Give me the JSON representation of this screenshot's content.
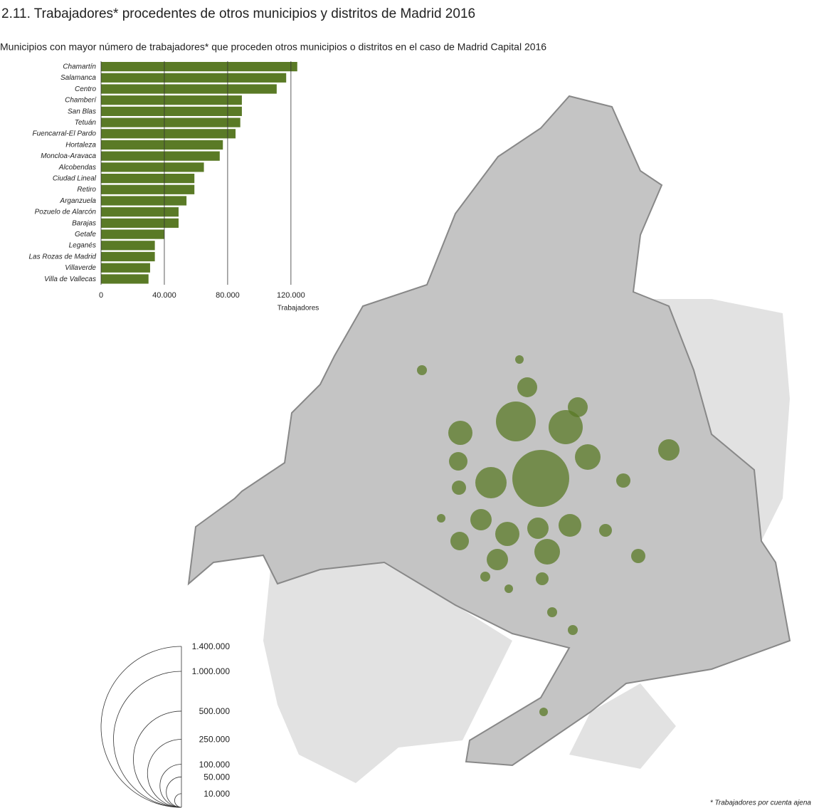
{
  "title": "2.11. Trabajadores* procedentes de otros municipios y distritos de Madrid 2016",
  "footnote": "* Trabajadores por cuenta ajena",
  "chart_data": [
    {
      "type": "hbar",
      "title": "Municipios con mayor número de trabajadores* que proceden otros municipios o distritos en el caso de Madrid Capital 2016",
      "x_label": "Trabajadores",
      "color": "#5a7a26",
      "categories": [
        "Chamartín",
        "Salamanca",
        "Centro",
        "Chamberí",
        "San Blas",
        "Tetuán",
        "Fuencarral-El Pardo",
        "Hortaleza",
        "Moncloa-Aravaca",
        "Alcobendas",
        "Ciudad Lineal",
        "Retiro",
        "Arganzuela",
        "Pozuelo de Alarcón",
        "Barajas",
        "Getafe",
        "Leganés",
        "Las Rozas de Madrid",
        "Villaverde",
        "Villa de Vallecas"
      ],
      "values": [
        124000,
        117000,
        111000,
        89000,
        89000,
        88000,
        85000,
        77000,
        75000,
        65000,
        59000,
        59000,
        54000,
        49000,
        49000,
        40000,
        34000,
        34000,
        31000,
        30000
      ],
      "xlim": [
        0,
        125000
      ],
      "xticks": [
        0,
        {
          "value": 40000,
          "label": "40.000"
        },
        {
          "value": 80000,
          "label": "80.000"
        },
        {
          "value": 120000,
          "label": "120.000"
        }
      ],
      "grid": true
    },
    {
      "type": "size_legend",
      "ticks": [
        {
          "value": 1400000,
          "label": "1.400.000"
        },
        {
          "value": 1000000,
          "label": "1.000.000"
        },
        {
          "value": 500000,
          "label": "500.000"
        },
        {
          "value": 250000,
          "label": "250.000"
        },
        {
          "value": 100000,
          "label": "100.000"
        },
        {
          "value": 50000,
          "label": "50.000"
        },
        {
          "value": 10000,
          "label": "10.000"
        }
      ]
    }
  ]
}
